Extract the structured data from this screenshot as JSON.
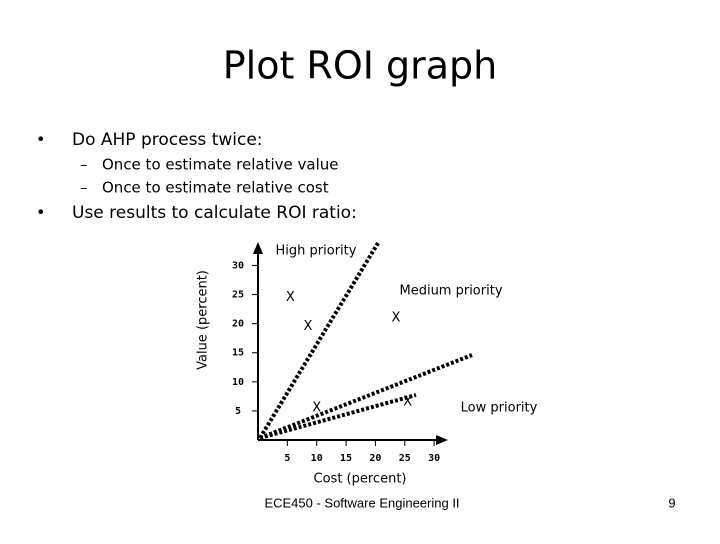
{
  "slide": {
    "title": "Plot ROI graph",
    "bullets": [
      {
        "text": "Do AHP process twice:",
        "sub": [
          "Once to estimate relative value",
          "Once to estimate relative cost"
        ]
      },
      {
        "text": "Use results to calculate ROI ratio:"
      }
    ],
    "footer": "ECE450 - Software Engineering II",
    "page": "9"
  },
  "chart_data": {
    "type": "scatter",
    "xlabel": "Cost (percent)",
    "ylabel": "Value (percent)",
    "marker": "X",
    "color": "#000000",
    "x": [
      5.5,
      8.5,
      23.5,
      10,
      25.5
    ],
    "values": [
      24.5,
      19.5,
      21,
      5.5,
      6.5
    ],
    "xlim": [
      0,
      31
    ],
    "ylim": [
      0,
      33
    ],
    "xticks": [
      5,
      10,
      15,
      20,
      25,
      30
    ],
    "yticks": [
      5,
      10,
      15,
      20,
      25,
      30
    ],
    "annotations": [
      "High priority",
      "Medium priority",
      "Low priority"
    ]
  }
}
